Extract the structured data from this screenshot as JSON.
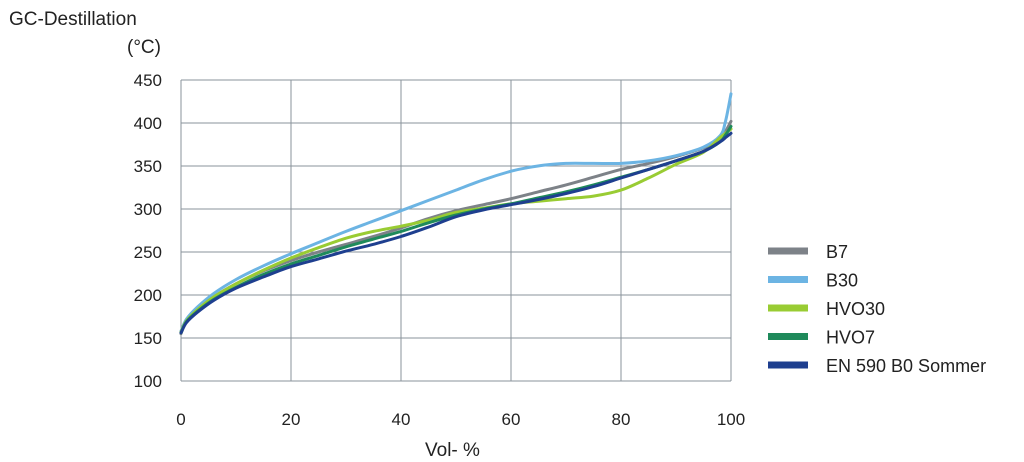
{
  "chart_data": {
    "type": "line",
    "ylabel_lines": [
      "GC-Destillation",
      "(°C)"
    ],
    "xlabel": "Vol- %",
    "xlim": [
      0,
      100
    ],
    "ylim": [
      100,
      450
    ],
    "xticks": [
      0,
      20,
      40,
      60,
      80,
      100
    ],
    "yticks": [
      100,
      150,
      200,
      250,
      300,
      350,
      400,
      450
    ],
    "grid": true,
    "legend_position": "right",
    "series": [
      {
        "name": "B7",
        "color": "#7d8288",
        "points": [
          [
            0,
            155
          ],
          [
            1,
            170
          ],
          [
            3,
            183
          ],
          [
            6,
            198
          ],
          [
            10,
            213
          ],
          [
            15,
            228
          ],
          [
            20,
            240
          ],
          [
            25,
            250
          ],
          [
            30,
            259
          ],
          [
            35,
            268
          ],
          [
            40,
            278
          ],
          [
            45,
            289
          ],
          [
            50,
            298
          ],
          [
            55,
            305
          ],
          [
            60,
            312
          ],
          [
            65,
            320
          ],
          [
            70,
            328
          ],
          [
            75,
            337
          ],
          [
            80,
            346
          ],
          [
            85,
            353
          ],
          [
            90,
            361
          ],
          [
            95,
            371
          ],
          [
            98,
            380
          ],
          [
            99,
            390
          ],
          [
            100,
            402
          ]
        ]
      },
      {
        "name": "B30",
        "color": "#6cb4e3",
        "points": [
          [
            0,
            158
          ],
          [
            1,
            172
          ],
          [
            3,
            186
          ],
          [
            6,
            202
          ],
          [
            10,
            218
          ],
          [
            15,
            234
          ],
          [
            20,
            248
          ],
          [
            25,
            261
          ],
          [
            30,
            274
          ],
          [
            35,
            286
          ],
          [
            40,
            298
          ],
          [
            45,
            310
          ],
          [
            50,
            322
          ],
          [
            55,
            334
          ],
          [
            60,
            344
          ],
          [
            63,
            348
          ],
          [
            66,
            351
          ],
          [
            70,
            353
          ],
          [
            75,
            353
          ],
          [
            80,
            353
          ],
          [
            85,
            356
          ],
          [
            90,
            362
          ],
          [
            95,
            372
          ],
          [
            98,
            385
          ],
          [
            99,
            402
          ],
          [
            100,
            434
          ]
        ]
      },
      {
        "name": "HVO30",
        "color": "#99cc33",
        "points": [
          [
            0,
            157
          ],
          [
            1,
            170
          ],
          [
            3,
            183
          ],
          [
            6,
            198
          ],
          [
            10,
            213
          ],
          [
            15,
            229
          ],
          [
            20,
            243
          ],
          [
            25,
            255
          ],
          [
            30,
            266
          ],
          [
            35,
            274
          ],
          [
            40,
            280
          ],
          [
            45,
            287
          ],
          [
            50,
            296
          ],
          [
            55,
            301
          ],
          [
            60,
            306
          ],
          [
            65,
            309
          ],
          [
            70,
            312
          ],
          [
            75,
            315
          ],
          [
            80,
            322
          ],
          [
            85,
            336
          ],
          [
            90,
            352
          ],
          [
            95,
            366
          ],
          [
            98,
            383
          ],
          [
            100,
            393
          ]
        ]
      },
      {
        "name": "HVO7",
        "color": "#1f8a5b",
        "points": [
          [
            0,
            156
          ],
          [
            1,
            169
          ],
          [
            3,
            181
          ],
          [
            6,
            195
          ],
          [
            10,
            209
          ],
          [
            15,
            224
          ],
          [
            20,
            236
          ],
          [
            25,
            246
          ],
          [
            30,
            256
          ],
          [
            35,
            265
          ],
          [
            40,
            274
          ],
          [
            45,
            284
          ],
          [
            50,
            293
          ],
          [
            55,
            300
          ],
          [
            60,
            306
          ],
          [
            65,
            313
          ],
          [
            70,
            320
          ],
          [
            75,
            328
          ],
          [
            80,
            337
          ],
          [
            85,
            346
          ],
          [
            90,
            356
          ],
          [
            95,
            367
          ],
          [
            98,
            378
          ],
          [
            99,
            386
          ],
          [
            100,
            396
          ]
        ]
      },
      {
        "name": "EN 590 B0 Sommer",
        "color": "#1e3f8f",
        "points": [
          [
            0,
            156
          ],
          [
            1,
            168
          ],
          [
            3,
            180
          ],
          [
            6,
            194
          ],
          [
            10,
            208
          ],
          [
            15,
            221
          ],
          [
            20,
            233
          ],
          [
            25,
            242
          ],
          [
            30,
            251
          ],
          [
            35,
            259
          ],
          [
            40,
            268
          ],
          [
            45,
            279
          ],
          [
            50,
            291
          ],
          [
            55,
            299
          ],
          [
            60,
            305
          ],
          [
            65,
            311
          ],
          [
            70,
            318
          ],
          [
            75,
            326
          ],
          [
            80,
            336
          ],
          [
            85,
            346
          ],
          [
            90,
            356
          ],
          [
            95,
            367
          ],
          [
            98,
            378
          ],
          [
            99,
            383
          ],
          [
            100,
            388
          ]
        ]
      }
    ]
  }
}
